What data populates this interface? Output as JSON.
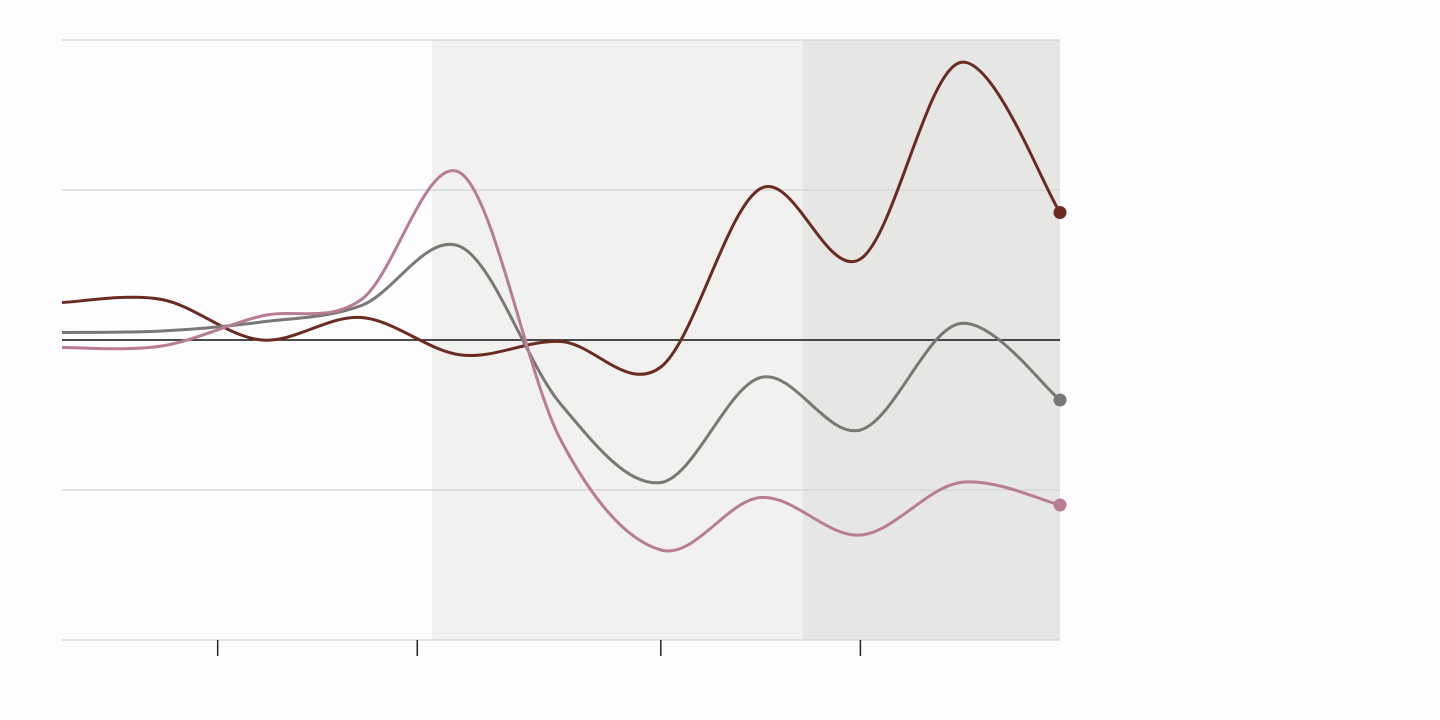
{
  "chart_data": {
    "type": "line",
    "x": [
      0,
      1,
      2,
      3,
      4,
      5,
      6,
      7,
      8,
      9,
      10
    ],
    "xlim": [
      0,
      10
    ],
    "xticks": [
      1.56,
      3.56,
      6,
      8
    ],
    "ylim": [
      -2,
      2
    ],
    "yticks": [
      -2,
      -1,
      0,
      1,
      2
    ],
    "grid": true,
    "shaded_regions": [
      {
        "xlim": [
          3.71,
          7.42
        ],
        "color": "#f1f1f0"
      },
      {
        "xlim": [
          7.42,
          10
        ],
        "color": "#e6e6e5"
      }
    ],
    "series": [
      {
        "color": "#6b2a22",
        "values": [
          0.25,
          0.27,
          0,
          0.15,
          -0.1,
          -0.01,
          -0.18,
          1.01,
          0.54,
          1.85,
          0.85
        ]
      },
      {
        "color": "#7a7774",
        "values": [
          0.05,
          0.06,
          0.12,
          0.23,
          0.62,
          -0.43,
          -0.95,
          -0.25,
          -0.6,
          0.11,
          -0.4
        ]
      },
      {
        "color": "#b87c93",
        "values": [
          -0.05,
          -0.04,
          0.16,
          0.27,
          1.11,
          -0.67,
          -1.4,
          -1.05,
          -1.3,
          -0.95,
          -1.1
        ]
      }
    ]
  }
}
